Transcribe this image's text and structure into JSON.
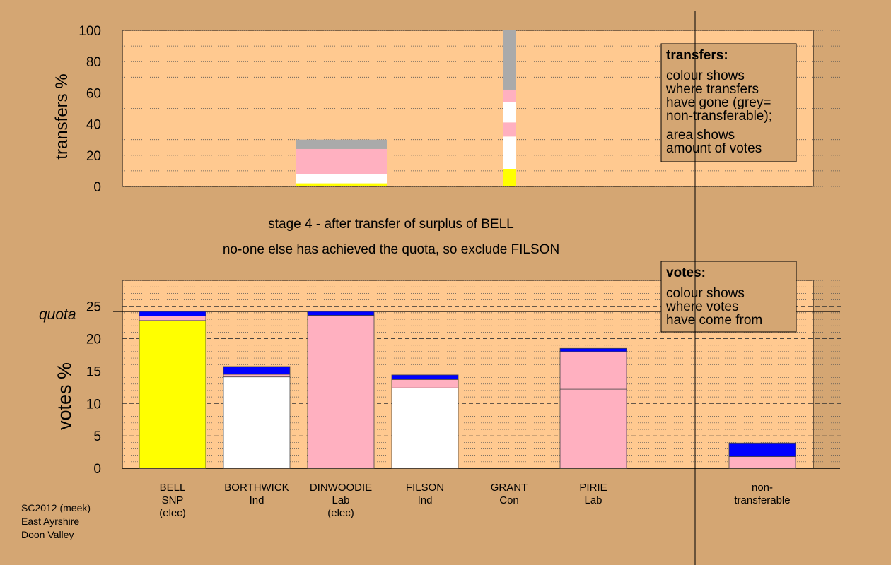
{
  "colors": {
    "background": "#d4a673",
    "plot_bg": "#ffc990",
    "snp": "#ffff00",
    "ind": "#ffffff",
    "lab": "#ffb0c0",
    "con": "#0000ff",
    "nontransferable": "#aaaaaa"
  },
  "top_axis_label": "transfers %",
  "bottom_axis_label": "votes %",
  "quota_label": "quota",
  "stage_title": "stage 4 - after transfer of surplus of BELL",
  "stage_subtitle": "no-one else has achieved the quota, so exclude FILSON",
  "transfers_note": {
    "heading": "transfers:",
    "lines": [
      "colour shows",
      "where transfers",
      "have gone (grey=",
      "non-transferable);",
      "area shows",
      "amount of votes"
    ]
  },
  "votes_note": {
    "heading": "votes:",
    "lines": [
      "colour shows",
      "where votes",
      "have come from"
    ]
  },
  "footer_lines": [
    "SC2012 (meek)",
    "East Ayrshire",
    "Doon Valley"
  ],
  "chart_data": [
    {
      "type": "bar",
      "name": "transfers",
      "ylim": [
        0,
        100
      ],
      "yticks": [
        0,
        20,
        40,
        60,
        80,
        100
      ],
      "bars": [
        {
          "slot": 3,
          "width_share": 0.29,
          "segments": [
            {
              "color": "snp",
              "value": 2
            },
            {
              "color": "ind",
              "value": 6
            },
            {
              "color": "lab",
              "value": 16
            },
            {
              "color": "nontransferable",
              "value": 6
            }
          ]
        },
        {
          "slot": 5,
          "width_share": 0.047,
          "segments": [
            {
              "color": "snp",
              "value": 11
            },
            {
              "color": "ind",
              "value": 21
            },
            {
              "color": "lab",
              "value": 9
            },
            {
              "color": "ind",
              "value": 13
            },
            {
              "color": "lab",
              "value": 8
            },
            {
              "color": "nontransferable",
              "value": 38
            }
          ]
        }
      ]
    },
    {
      "type": "bar",
      "name": "votes",
      "ylim": [
        0,
        29
      ],
      "yticks": [
        0,
        5,
        10,
        15,
        20,
        25
      ],
      "quota": 24.2,
      "categories": [
        {
          "label1": "BELL",
          "label2": "SNP",
          "label3": "(elec)"
        },
        {
          "label1": "BORTHWICK",
          "label2": "Ind",
          "label3": ""
        },
        {
          "label1": "DINWOODIE",
          "label2": "Lab",
          "label3": "(elec)"
        },
        {
          "label1": "FILSON",
          "label2": "Ind",
          "label3": ""
        },
        {
          "label1": "GRANT",
          "label2": "Con",
          "label3": ""
        },
        {
          "label1": "PIRIE",
          "label2": "Lab",
          "label3": ""
        },
        {
          "label1": "non-",
          "label2": "transferable",
          "label3": ""
        }
      ],
      "bars": [
        {
          "slot": 0,
          "segments": [
            {
              "color": "snp",
              "value": 22.8
            },
            {
              "color": "lab",
              "value": 0.7
            },
            {
              "color": "con",
              "value": 0.7
            }
          ]
        },
        {
          "slot": 1,
          "segments": [
            {
              "color": "ind",
              "value": 14.1
            },
            {
              "color": "lab",
              "value": 0.4
            },
            {
              "color": "con",
              "value": 1.2
            }
          ]
        },
        {
          "slot": 2,
          "segments": [
            {
              "color": "lab",
              "value": 23.6
            },
            {
              "color": "con",
              "value": 0.6
            }
          ]
        },
        {
          "slot": 3,
          "segments": [
            {
              "color": "ind",
              "value": 12.4
            },
            {
              "color": "lab",
              "value": 1.3
            },
            {
              "color": "con",
              "value": 0.7
            }
          ]
        },
        {
          "slot": 5,
          "segments": [
            {
              "color": "lab",
              "value": 12.2
            },
            {
              "color": "lab",
              "value": 5.8
            },
            {
              "color": "con",
              "value": 0.5
            }
          ]
        },
        {
          "slot": 7,
          "segments": [
            {
              "color": "lab",
              "value": 1.8
            },
            {
              "color": "con",
              "value": 2.1
            }
          ]
        }
      ]
    }
  ]
}
